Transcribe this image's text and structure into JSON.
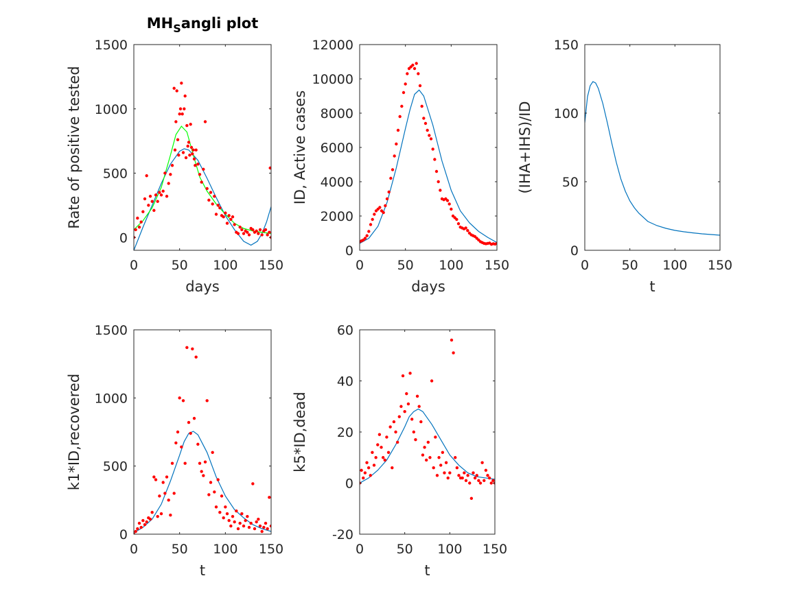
{
  "figure": {
    "colors": {
      "fit": "#0072bd",
      "fit2": "#00ff00",
      "data": "#ff0000",
      "axis": "#262626"
    }
  },
  "chart_data": [
    {
      "type": "scatter",
      "title_main": "MH",
      "title_sub": "S",
      "title_rest": "angli plot",
      "xlabel": "days",
      "ylabel": "Rate of positive tested",
      "xlim": [
        0,
        150
      ],
      "ylim": [
        -100,
        1500
      ],
      "xticks": [
        0,
        50,
        100,
        150
      ],
      "yticks": [
        0,
        500,
        1000,
        1500
      ],
      "series": [
        {
          "name": "fit",
          "kind": "line",
          "color": "#0072bd",
          "x": [
            0,
            10,
            20,
            30,
            40,
            50,
            55,
            60,
            70,
            80,
            90,
            100,
            110,
            120,
            128,
            135,
            140,
            145,
            150
          ],
          "y": [
            -100,
            80,
            250,
            420,
            570,
            670,
            690,
            680,
            600,
            460,
            310,
            170,
            60,
            -30,
            -60,
            -30,
            30,
            120,
            240
          ]
        },
        {
          "name": "fit2",
          "kind": "line",
          "color": "#00ff00",
          "x": [
            0,
            10,
            20,
            30,
            40,
            46,
            52,
            58,
            65,
            72,
            80,
            90,
            100,
            110,
            120,
            130,
            140,
            150
          ],
          "y": [
            60,
            130,
            230,
            390,
            640,
            800,
            865,
            820,
            640,
            470,
            360,
            260,
            180,
            110,
            70,
            50,
            40,
            30
          ]
        },
        {
          "name": "observed",
          "kind": "points",
          "color": "#ff0000",
          "x": [
            0,
            2,
            4,
            6,
            8,
            10,
            12,
            14,
            16,
            18,
            20,
            22,
            24,
            26,
            28,
            30,
            32,
            34,
            36,
            38,
            40,
            42,
            44,
            45,
            46,
            47,
            48,
            49,
            50,
            51,
            52,
            53,
            54,
            55,
            56,
            57,
            58,
            59,
            60,
            61,
            62,
            63,
            64,
            65,
            66,
            67,
            68,
            70,
            72,
            74,
            76,
            78,
            80,
            82,
            84,
            86,
            88,
            90,
            92,
            94,
            96,
            98,
            100,
            102,
            104,
            106,
            108,
            110,
            112,
            114,
            116,
            118,
            120,
            122,
            124,
            126,
            128,
            130,
            132,
            134,
            136,
            138,
            140,
            142,
            144,
            146,
            148,
            149,
            150
          ],
          "y": [
            0,
            60,
            150,
            80,
            120,
            200,
            300,
            480,
            250,
            320,
            280,
            210,
            330,
            280,
            350,
            330,
            360,
            500,
            320,
            420,
            490,
            560,
            1160,
            680,
            900,
            1140,
            760,
            640,
            960,
            1000,
            1200,
            960,
            660,
            1000,
            1100,
            620,
            870,
            710,
            740,
            640,
            880,
            700,
            650,
            680,
            610,
            560,
            680,
            570,
            490,
            430,
            530,
            900,
            380,
            290,
            350,
            260,
            320,
            180,
            250,
            230,
            170,
            160,
            190,
            110,
            170,
            140,
            160,
            100,
            40,
            30,
            80,
            60,
            30,
            50,
            40,
            20,
            70,
            60,
            40,
            50,
            30,
            60,
            20,
            50,
            60,
            20,
            40,
            540,
            0
          ]
        }
      ]
    },
    {
      "type": "scatter",
      "xlabel": "days",
      "ylabel": "ID, Active cases",
      "xlim": [
        0,
        150
      ],
      "ylim": [
        0,
        12000
      ],
      "xticks": [
        0,
        50,
        100,
        150
      ],
      "yticks": [
        0,
        2000,
        4000,
        6000,
        8000,
        10000,
        12000
      ],
      "series": [
        {
          "name": "fit",
          "kind": "line",
          "color": "#0072bd",
          "x": [
            0,
            10,
            20,
            30,
            40,
            50,
            55,
            60,
            65,
            70,
            80,
            90,
            100,
            110,
            120,
            130,
            140,
            150
          ],
          "y": [
            400,
            700,
            1400,
            2800,
            4800,
            7100,
            8200,
            9100,
            9350,
            9000,
            7300,
            5200,
            3500,
            2300,
            1600,
            1100,
            750,
            450
          ]
        },
        {
          "name": "observed",
          "kind": "points",
          "color": "#ff0000",
          "x": [
            0,
            2,
            4,
            6,
            8,
            10,
            12,
            14,
            16,
            18,
            20,
            22,
            24,
            26,
            28,
            30,
            32,
            34,
            36,
            38,
            40,
            42,
            44,
            46,
            48,
            50,
            52,
            54,
            56,
            58,
            60,
            62,
            64,
            66,
            68,
            70,
            72,
            74,
            76,
            78,
            80,
            82,
            84,
            86,
            88,
            90,
            92,
            94,
            96,
            98,
            100,
            102,
            104,
            106,
            108,
            110,
            112,
            114,
            116,
            118,
            120,
            122,
            124,
            126,
            128,
            130,
            132,
            134,
            136,
            138,
            140,
            142,
            144,
            146,
            148,
            150
          ],
          "y": [
            500,
            550,
            600,
            700,
            850,
            1100,
            1500,
            1800,
            2100,
            2300,
            2400,
            2500,
            2300,
            2200,
            2600,
            3000,
            3400,
            4200,
            4700,
            5500,
            6200,
            7000,
            7800,
            8400,
            9200,
            9700,
            10300,
            10600,
            10700,
            10800,
            10600,
            10900,
            10300,
            9600,
            8400,
            7700,
            7400,
            7000,
            6700,
            6500,
            5900,
            5300,
            4600,
            4000,
            3500,
            3000,
            2950,
            3000,
            2900,
            2700,
            2400,
            2000,
            1900,
            1800,
            1550,
            1350,
            1300,
            1250,
            1300,
            1150,
            1000,
            900,
            850,
            800,
            700,
            600,
            500,
            450,
            400,
            380,
            400,
            420,
            350,
            380,
            360,
            400
          ]
        }
      ]
    },
    {
      "type": "line",
      "xlabel": "t",
      "ylabel": "(IHA+IHS)/ID",
      "xlim": [
        0,
        150
      ],
      "ylim": [
        0,
        150
      ],
      "xticks": [
        0,
        50,
        100,
        150
      ],
      "yticks": [
        0,
        50,
        100,
        150
      ],
      "series": [
        {
          "name": "ratio",
          "kind": "line",
          "color": "#0072bd",
          "x": [
            0,
            3,
            6,
            9,
            12,
            15,
            20,
            25,
            30,
            35,
            40,
            45,
            50,
            55,
            60,
            70,
            80,
            90,
            100,
            110,
            120,
            130,
            140,
            150
          ],
          "y": [
            93,
            112,
            120,
            123,
            122,
            118,
            107,
            93,
            78,
            64,
            52,
            43,
            36,
            31,
            27,
            21,
            18,
            16,
            14.5,
            13.5,
            12.7,
            12,
            11.5,
            11
          ]
        }
      ]
    },
    {
      "type": "scatter",
      "xlabel": "t",
      "ylabel": "k1*ID,recovered",
      "xlim": [
        0,
        150
      ],
      "ylim": [
        0,
        1500
      ],
      "xticks": [
        0,
        50,
        100,
        150
      ],
      "yticks": [
        0,
        500,
        1000,
        1500
      ],
      "series": [
        {
          "name": "fit",
          "kind": "line",
          "color": "#0072bd",
          "x": [
            0,
            10,
            20,
            30,
            40,
            50,
            55,
            60,
            65,
            70,
            80,
            90,
            100,
            110,
            120,
            130,
            140,
            150
          ],
          "y": [
            10,
            50,
            110,
            220,
            390,
            580,
            680,
            740,
            755,
            730,
            600,
            420,
            280,
            180,
            120,
            70,
            40,
            20
          ]
        },
        {
          "name": "observed",
          "kind": "points",
          "color": "#ff0000",
          "x": [
            0,
            2,
            4,
            6,
            8,
            10,
            12,
            14,
            16,
            18,
            20,
            22,
            24,
            26,
            28,
            30,
            32,
            34,
            36,
            38,
            40,
            42,
            44,
            46,
            48,
            50,
            52,
            54,
            56,
            58,
            60,
            62,
            64,
            66,
            68,
            70,
            72,
            74,
            76,
            78,
            80,
            82,
            84,
            86,
            88,
            90,
            92,
            94,
            96,
            98,
            100,
            102,
            104,
            106,
            108,
            110,
            112,
            114,
            116,
            118,
            120,
            122,
            124,
            126,
            128,
            130,
            132,
            134,
            136,
            138,
            140,
            142,
            144,
            146,
            148,
            150
          ],
          "y": [
            0,
            20,
            40,
            80,
            50,
            100,
            70,
            90,
            120,
            110,
            160,
            420,
            400,
            130,
            280,
            150,
            380,
            300,
            420,
            250,
            140,
            520,
            300,
            670,
            750,
            1000,
            640,
            980,
            520,
            1370,
            820,
            740,
            1360,
            850,
            1300,
            660,
            520,
            460,
            430,
            530,
            980,
            290,
            380,
            600,
            310,
            200,
            400,
            160,
            280,
            120,
            200,
            150,
            100,
            60,
            130,
            90,
            170,
            40,
            80,
            150,
            60,
            100,
            130,
            50,
            80,
            370,
            40,
            90,
            110,
            60,
            20,
            50,
            80,
            40,
            270,
            60
          ]
        }
      ]
    },
    {
      "type": "scatter",
      "xlabel": "t",
      "ylabel": "k5*ID,dead",
      "xlim": [
        0,
        150
      ],
      "ylim": [
        -20,
        60
      ],
      "xticks": [
        0,
        50,
        100,
        150
      ],
      "yticks": [
        -20,
        0,
        20,
        40,
        60
      ],
      "series": [
        {
          "name": "fit",
          "kind": "line",
          "color": "#0072bd",
          "x": [
            0,
            10,
            20,
            30,
            40,
            50,
            55,
            60,
            65,
            70,
            80,
            90,
            100,
            110,
            120,
            130,
            140,
            150
          ],
          "y": [
            0,
            2,
            5,
            9,
            15,
            22,
            26,
            28,
            29,
            28,
            23,
            17,
            11,
            7,
            4,
            2.5,
            2,
            1.5
          ]
        },
        {
          "name": "observed",
          "kind": "points",
          "color": "#ff0000",
          "x": [
            0,
            2,
            4,
            6,
            8,
            10,
            12,
            14,
            16,
            18,
            20,
            22,
            24,
            26,
            28,
            30,
            32,
            34,
            36,
            38,
            40,
            42,
            44,
            46,
            48,
            50,
            52,
            54,
            56,
            58,
            60,
            62,
            64,
            66,
            68,
            70,
            72,
            74,
            76,
            78,
            80,
            82,
            84,
            86,
            88,
            90,
            92,
            94,
            96,
            98,
            100,
            102,
            104,
            106,
            108,
            110,
            112,
            114,
            116,
            118,
            120,
            122,
            124,
            126,
            128,
            130,
            132,
            134,
            136,
            138,
            140,
            142,
            144,
            146,
            148,
            150
          ],
          "y": [
            0,
            5,
            2,
            4,
            8,
            6,
            3,
            12,
            7,
            10,
            15,
            19,
            14,
            10,
            9,
            18,
            12,
            22,
            6,
            24,
            20,
            16,
            26,
            30,
            42,
            28,
            35,
            31,
            43,
            25,
            20,
            17,
            34,
            30,
            24,
            11,
            14,
            9,
            16,
            10,
            40,
            6,
            18,
            3,
            10,
            7,
            12,
            4,
            8,
            2,
            4,
            56,
            51,
            10,
            6,
            3,
            2,
            2,
            4,
            1,
            3,
            0,
            -6,
            4,
            2,
            3,
            1,
            0,
            8,
            1,
            5,
            3,
            2,
            0,
            1,
            0
          ]
        }
      ]
    }
  ]
}
